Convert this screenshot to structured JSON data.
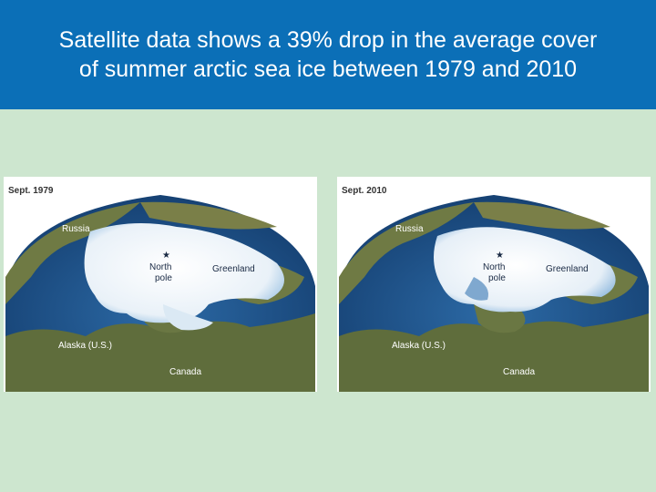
{
  "slide": {
    "title_line1": "Satellite data shows a 39% drop in the average cover",
    "title_line2": "of summer arctic sea ice between 1979 and 2010"
  },
  "colors": {
    "title_bar": "#0b6fb7",
    "background": "#cde6cf",
    "ocean": "#1d4e84",
    "land": "#6f7a44",
    "ice": "#f4f8fb"
  },
  "maps": [
    {
      "year_label": "Sept. 1979",
      "labels": {
        "russia": "Russia",
        "north_pole_line1": "North",
        "north_pole_line2": "pole",
        "greenland": "Greenland",
        "alaska": "Alaska (U.S.)",
        "canada": "Canada"
      }
    },
    {
      "year_label": "Sept. 2010",
      "labels": {
        "russia": "Russia",
        "north_pole_line1": "North",
        "north_pole_line2": "pole",
        "greenland": "Greenland",
        "alaska": "Alaska (U.S.)",
        "canada": "Canada"
      }
    }
  ]
}
